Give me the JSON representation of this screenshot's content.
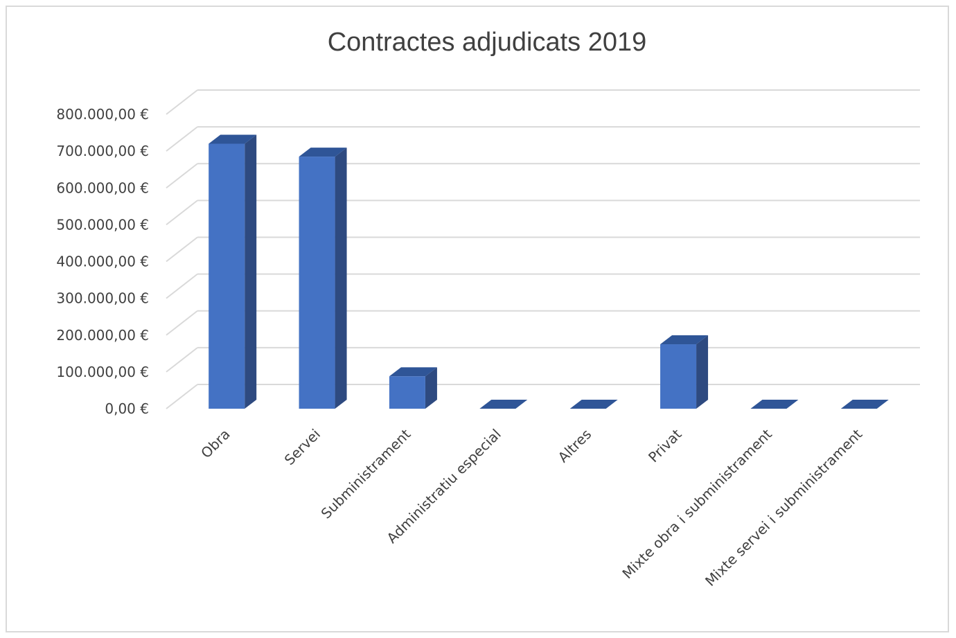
{
  "chart_data": {
    "type": "bar",
    "title": "Contractes adjudicats 2019",
    "xlabel": "",
    "ylabel": "",
    "categories": [
      "Obra",
      "Servei",
      "Subministrament",
      "Administratiu especial",
      "Altres",
      "Privat",
      "Mixte obra i subministrament",
      "Mixte servei i subministrament"
    ],
    "values": [
      720000,
      685000,
      88000,
      0,
      0,
      175000,
      0,
      0
    ],
    "ylim": [
      0,
      800000
    ],
    "yticks": [
      {
        "value": 0,
        "label": "0,00 €"
      },
      {
        "value": 100000,
        "label": "100.000,00 €"
      },
      {
        "value": 200000,
        "label": "200.000,00 €"
      },
      {
        "value": 300000,
        "label": "300.000,00 €"
      },
      {
        "value": 400000,
        "label": "400.000,00 €"
      },
      {
        "value": 500000,
        "label": "500.000,00 €"
      },
      {
        "value": 600000,
        "label": "600.000,00 €"
      },
      {
        "value": 700000,
        "label": "700.000,00 €"
      },
      {
        "value": 800000,
        "label": "800.000,00 €"
      }
    ],
    "grid": true,
    "legend": "none",
    "colors": {
      "bar_front": "#4472c4",
      "bar_side": "#2e4a80",
      "bar_top": "#2f5597",
      "grid": "#d9d9d9",
      "text": "#404040"
    }
  }
}
